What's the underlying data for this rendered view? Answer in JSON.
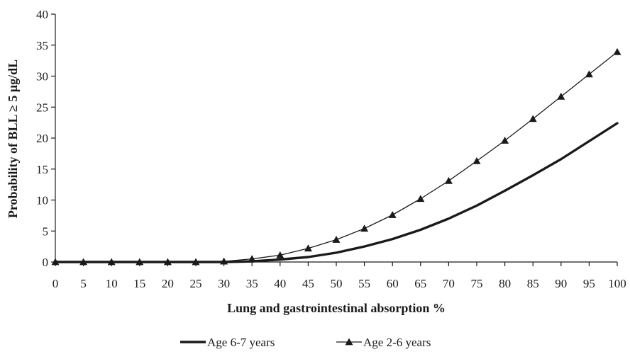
{
  "chart_data": {
    "type": "line",
    "title": "",
    "xlabel": "Lung and gastrointestinal absorption %",
    "ylabel": "Probability of BLL ≥ 5 μg/dL",
    "xlim": [
      0,
      100
    ],
    "ylim": [
      0,
      40
    ],
    "x_ticks": [
      0,
      5,
      10,
      15,
      20,
      25,
      30,
      35,
      40,
      45,
      50,
      55,
      60,
      65,
      70,
      75,
      80,
      85,
      90,
      95,
      100
    ],
    "y_ticks": [
      0,
      5,
      10,
      15,
      20,
      25,
      30,
      35,
      40
    ],
    "grid": false,
    "legend_position": "bottom",
    "x": [
      0,
      5,
      10,
      15,
      20,
      25,
      30,
      35,
      40,
      45,
      50,
      55,
      60,
      65,
      70,
      75,
      80,
      85,
      90,
      95,
      100
    ],
    "series": [
      {
        "name": "Age 6-7 years",
        "style": "thick-line",
        "color": "#1a1a1a",
        "values": [
          0,
          0,
          0,
          0,
          0,
          0,
          0,
          0.1,
          0.4,
          0.8,
          1.5,
          2.5,
          3.7,
          5.2,
          7.0,
          9.1,
          11.5,
          14.0,
          16.6,
          19.5,
          22.4
        ]
      },
      {
        "name": "Age 2-6 years",
        "style": "line-triangle-markers",
        "color": "#1a1a1a",
        "values": [
          0,
          0,
          0,
          0,
          0,
          0,
          0.1,
          0.5,
          1.1,
          2.2,
          3.6,
          5.4,
          7.6,
          10.2,
          13.1,
          16.3,
          19.6,
          23.1,
          26.7,
          30.3,
          33.9
        ]
      }
    ]
  }
}
